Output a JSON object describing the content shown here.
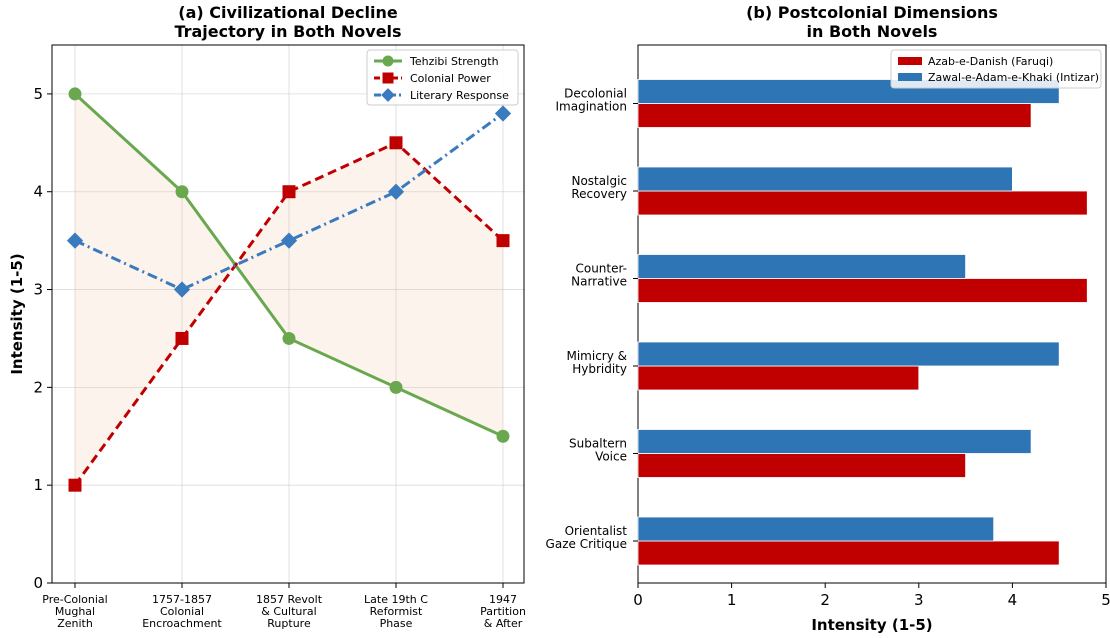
{
  "chart_data": [
    {
      "type": "line",
      "title_line1": "(a) Civilizational Decline",
      "title_line2": "Trajectory in Both Novels",
      "xlabel": "",
      "ylabel": "Intensity (1-5)",
      "ylim": [
        0,
        5.5
      ],
      "yticks": [
        "0",
        "1",
        "2",
        "3",
        "4",
        "5"
      ],
      "grid": true,
      "legend_position": "top-right",
      "categories": [
        [
          "Pre-Colonial",
          "Mughal",
          "Zenith"
        ],
        [
          "1757-1857",
          "Colonial",
          "Encroachment"
        ],
        [
          "1857 Revolt",
          "& Cultural",
          "Rupture"
        ],
        [
          "Late 19th C",
          "Reformist",
          "Phase"
        ],
        [
          "1947",
          "Partition",
          "& After"
        ]
      ],
      "series": [
        {
          "name": "Tehzibi Strength",
          "values": [
            5,
            4,
            2.5,
            2,
            1.5
          ],
          "color": "#6aa84f",
          "marker": "circle",
          "dash": "solid"
        },
        {
          "name": "Colonial Power",
          "values": [
            1,
            2.5,
            4,
            4.5,
            3.5
          ],
          "color": "#c00000",
          "marker": "square",
          "dash": "dashed"
        },
        {
          "name": "Literary Response",
          "values": [
            3.5,
            3,
            3.5,
            4,
            4.8
          ],
          "color": "#3a7abf",
          "marker": "diamond",
          "dash": "dashdot"
        }
      ],
      "fill_between": {
        "series": [
          "Tehzibi Strength",
          "Colonial Power"
        ],
        "color": "#f4b183"
      }
    },
    {
      "type": "bar",
      "orientation": "horizontal",
      "title_line1": "(b) Postcolonial Dimensions",
      "title_line2": "in Both Novels",
      "xlabel": "Intensity (1-5)",
      "xlim": [
        0,
        5
      ],
      "xticks": [
        "0",
        "1",
        "2",
        "3",
        "4",
        "5"
      ],
      "legend_position": "top-right",
      "categories": [
        [
          "Orientalist",
          "Gaze Critique"
        ],
        [
          "Subaltern",
          "Voice"
        ],
        [
          "Mimicry &",
          "Hybridity"
        ],
        [
          "Counter-",
          "Narrative"
        ],
        [
          "Nostalgic",
          "Recovery"
        ],
        [
          "Decolonial",
          "Imagination"
        ]
      ],
      "series": [
        {
          "name": "Azab-e-Danish (Faruqi)",
          "values": [
            4.5,
            3.5,
            3,
            4.8,
            4.8,
            4.2
          ],
          "color": "#c00000"
        },
        {
          "name": "Zawal-e-Adam-e-Khaki (Intizar)",
          "values": [
            3.8,
            4.2,
            4.5,
            3.5,
            4,
            4.5
          ],
          "color": "#2e75b6"
        }
      ]
    }
  ]
}
